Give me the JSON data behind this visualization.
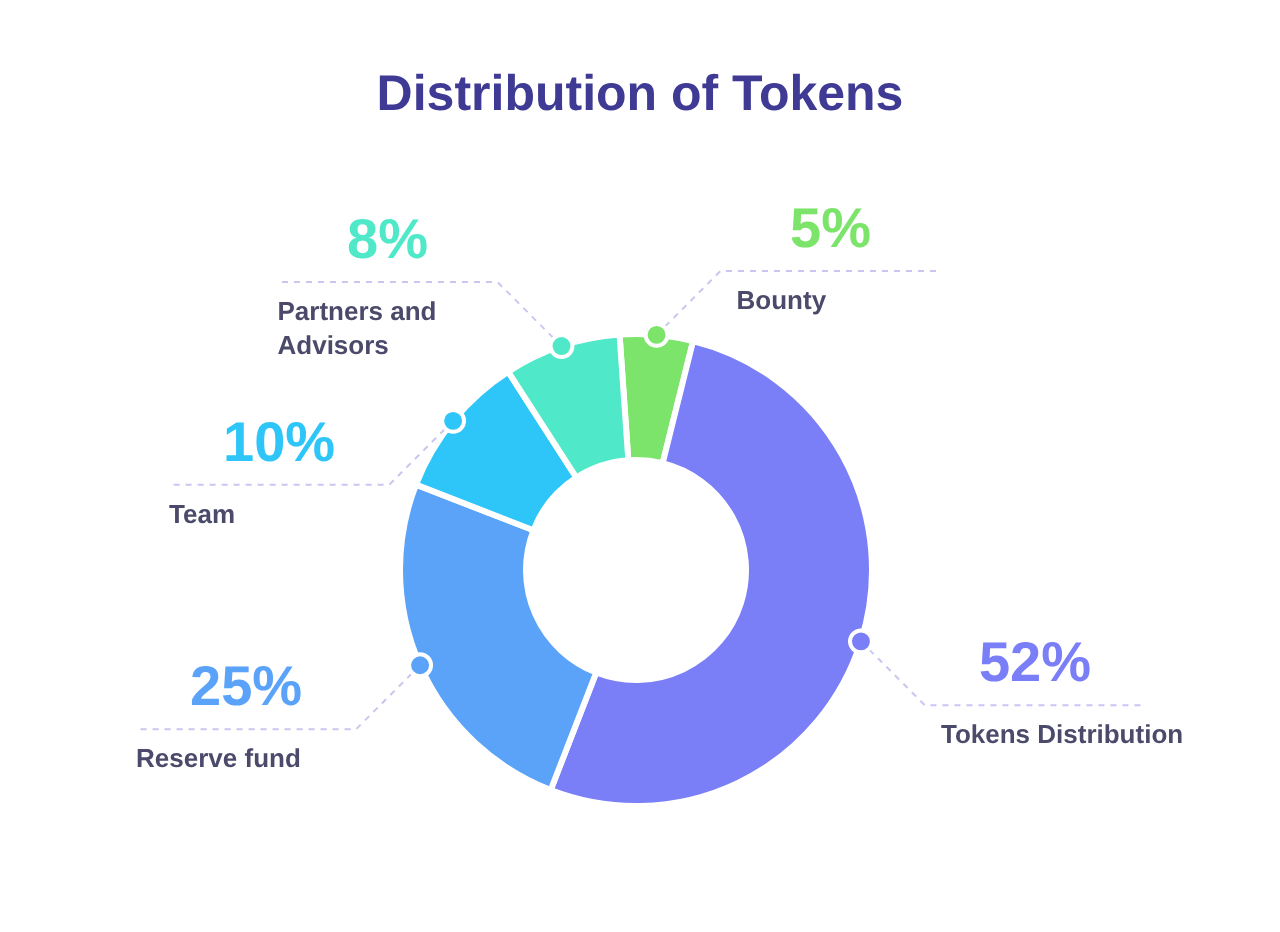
{
  "chart_data": {
    "type": "donut",
    "title": "Distribution of Tokens",
    "categories": [
      "Bounty",
      "Tokens Distribution",
      "Reserve fund",
      "Team",
      "Partners and Advisors"
    ],
    "values": [
      5,
      52,
      25,
      10,
      8
    ],
    "colors": [
      "#7ce46a",
      "#7a7ef7",
      "#5aa3f9",
      "#2ec5f8",
      "#4fe8c8"
    ],
    "value_labels": [
      "5%",
      "52%",
      "25%",
      "10%",
      "8%"
    ]
  }
}
